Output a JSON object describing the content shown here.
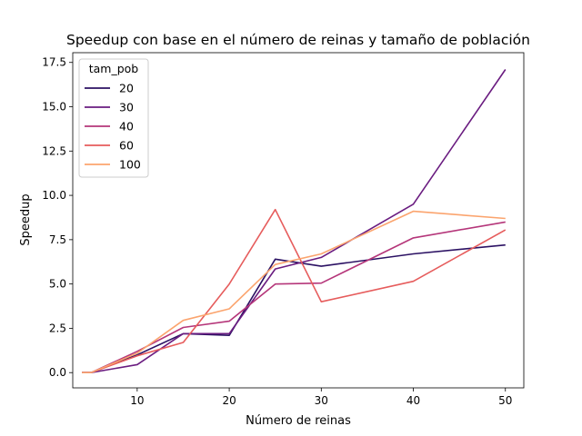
{
  "chart_data": {
    "type": "line",
    "title": "Speedup con base en el número de reinas y tamaño de población",
    "xlabel": "Número de reinas",
    "ylabel": "Speedup",
    "xlim": [
      3,
      52
    ],
    "ylim": [
      -0.86,
      18.05
    ],
    "xticks": [
      10,
      20,
      30,
      40,
      50
    ],
    "yticks": [
      0.0,
      2.5,
      5.0,
      7.5,
      10.0,
      12.5,
      15.0,
      17.5
    ],
    "ytick_labels": [
      "0.0",
      "2.5",
      "5.0",
      "7.5",
      "10.0",
      "12.5",
      "15.0",
      "17.5"
    ],
    "grid": false,
    "legend": {
      "title": "tam_pob",
      "position": "top-left"
    },
    "x": [
      4,
      5,
      10,
      15,
      20,
      25,
      30,
      40,
      50
    ],
    "series": [
      {
        "name": "20",
        "color": "#2b1163",
        "values": [
          0.0,
          0.0,
          1.0,
          2.2,
          2.1,
          6.4,
          6.0,
          6.7,
          7.2
        ]
      },
      {
        "name": "30",
        "color": "#6a1c80",
        "values": [
          0.0,
          0.0,
          0.45,
          2.2,
          2.2,
          5.85,
          6.5,
          9.5,
          17.1
        ]
      },
      {
        "name": "40",
        "color": "#b5367a",
        "values": [
          0.0,
          0.0,
          1.2,
          2.55,
          2.9,
          5.0,
          5.05,
          7.6,
          8.5
        ]
      },
      {
        "name": "60",
        "color": "#e65c5c",
        "values": [
          0.0,
          0.0,
          0.95,
          1.7,
          5.0,
          9.2,
          4.0,
          5.15,
          8.05
        ]
      },
      {
        "name": "100",
        "color": "#fba46e",
        "values": [
          0.0,
          0.0,
          1.1,
          2.95,
          3.6,
          6.1,
          6.7,
          9.1,
          8.7
        ]
      }
    ]
  }
}
